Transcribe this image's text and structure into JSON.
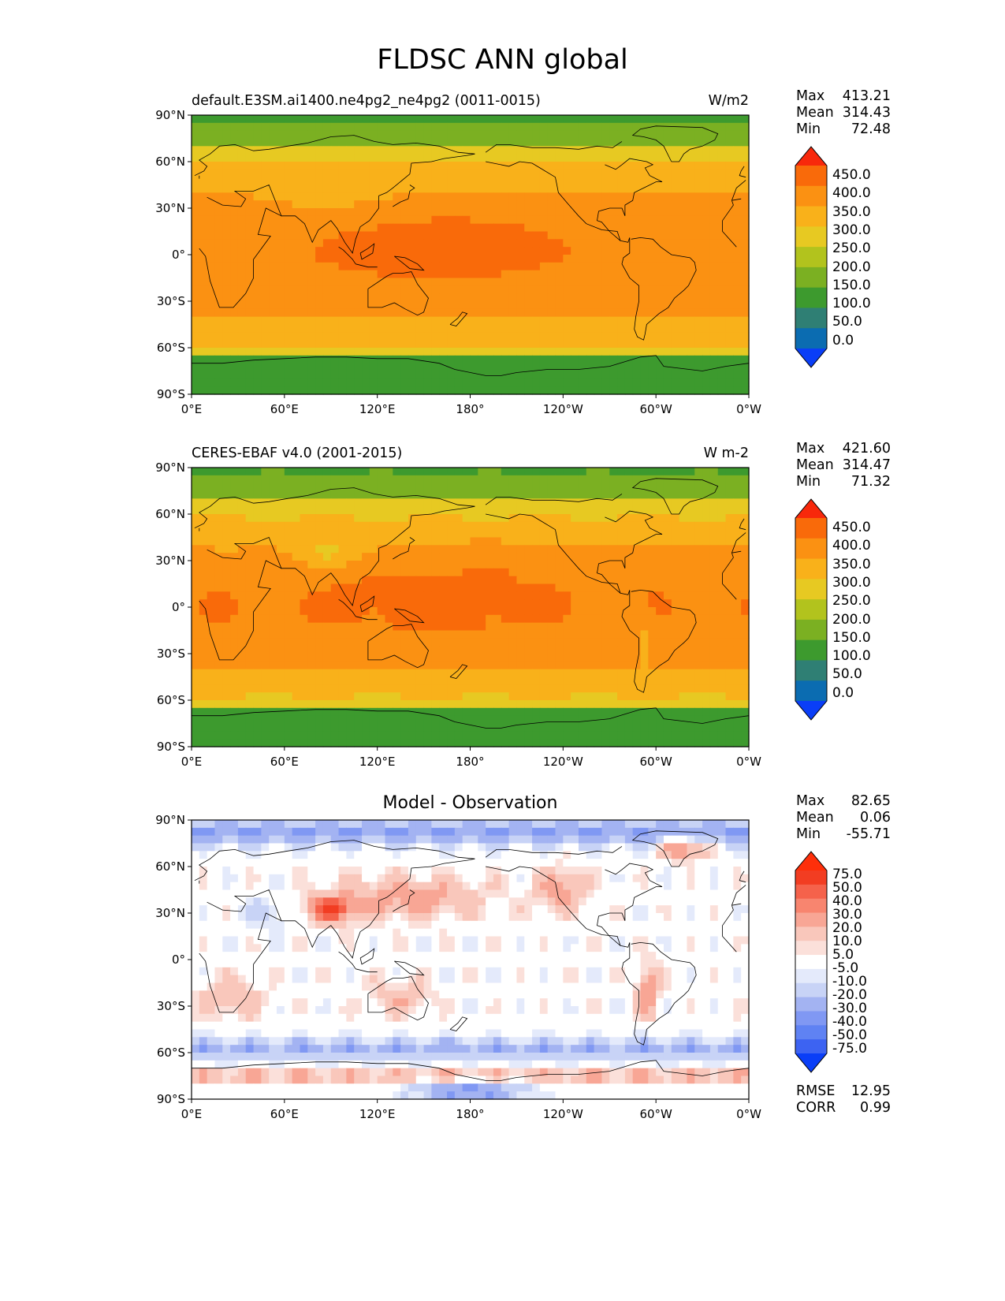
{
  "title": "FLDSC ANN global",
  "x_ticks": [
    "0°E",
    "60°E",
    "120°E",
    "180°",
    "120°W",
    "60°W",
    "0°W"
  ],
  "y_ticks": [
    "90°N",
    "60°N",
    "30°N",
    "0°",
    "30°S",
    "60°S",
    "90°S"
  ],
  "colors": {
    "seq_bins": [
      "#0a3ef7",
      "#0b6cb1",
      "#2f7f74",
      "#3d9a2e",
      "#7bb022",
      "#b2c31d",
      "#e7c922",
      "#f9b11a",
      "#fb9112",
      "#f96a0a",
      "#f8280b"
    ],
    "diff_bins": [
      "#0a3ef7",
      "#3d63f2",
      "#5f82f3",
      "#8098f3",
      "#a3b3f2",
      "#c8d3f6",
      "#e4eafb",
      "#ffffff",
      "#fbe0da",
      "#f9c7bb",
      "#f8a695",
      "#f8856f",
      "#f5624b",
      "#f23d22",
      "#fe2f0a"
    ]
  },
  "panels": [
    {
      "title_left": "default.E3SM.ai1400.ne4pg2_ne4pg2 (0011-0015)",
      "title_right": "W/m2",
      "stats": {
        "max_label": "Max",
        "max": "413.21",
        "mean_label": "Mean",
        "mean": "314.43",
        "min_label": "Min",
        "min": "72.48"
      },
      "colorbar_labels": [
        "450.0",
        "400.0",
        "350.0",
        "300.0",
        "250.0",
        "200.0",
        "150.0",
        "100.0",
        "50.0",
        "0.0"
      ]
    },
    {
      "title_left": "CERES-EBAF v4.0 (2001-2015)",
      "title_right": "W m-2",
      "stats": {
        "max_label": "Max",
        "max": "421.60",
        "mean_label": "Mean",
        "mean": "314.47",
        "min_label": "Min",
        "min": "71.32"
      },
      "colorbar_labels": [
        "450.0",
        "400.0",
        "350.0",
        "300.0",
        "250.0",
        "200.0",
        "150.0",
        "100.0",
        "50.0",
        "0.0"
      ]
    },
    {
      "title_center": "Model - Observation",
      "stats": {
        "max_label": "Max",
        "max": "82.65",
        "mean_label": "Mean",
        "mean": "0.06",
        "min_label": "Min",
        "min": "-55.71"
      },
      "colorbar_labels": [
        "75.0",
        "50.0",
        "40.0",
        "30.0",
        "20.0",
        "10.0",
        "5.0",
        "-5.0",
        "-10.0",
        "-20.0",
        "-30.0",
        "-40.0",
        "-50.0",
        "-75.0"
      ],
      "rmse_label": "RMSE",
      "rmse": "12.95",
      "corr_label": "CORR",
      "corr": "0.99"
    }
  ]
}
